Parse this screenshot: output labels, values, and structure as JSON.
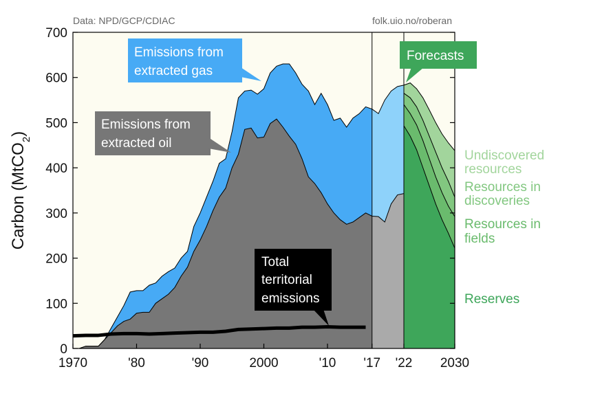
{
  "source_note": "Data: NPD/GCP/CDIAC",
  "credit": "folk.uio.no/roberan",
  "colors": {
    "background": "#fdfcf1",
    "oil": "#777777",
    "oil_recent": "#aaaaaa",
    "gas": "#47aaf5",
    "gas_recent": "#8ed2fa",
    "reserves": "#3ea65a",
    "fields": "#6abb6d",
    "discoveries": "#82c780",
    "undiscovered": "#a2d59c",
    "callout_gas": "#47aaf5",
    "callout_oil": "#777777",
    "callout_total": "#000000",
    "callout_forecast": "#3ea65a"
  },
  "callouts": {
    "gas": [
      "Emissions from",
      "extracted gas"
    ],
    "oil": [
      "Emissions from",
      "extracted oil"
    ],
    "total": [
      "Total",
      "territorial",
      "emissions"
    ],
    "forecast": [
      "Forecasts"
    ]
  },
  "forecast_labels": [
    {
      "lines": [
        "Undiscovered",
        "resources"
      ],
      "color": "#a2d59c"
    },
    {
      "lines": [
        "Resources in",
        "discoveries"
      ],
      "color": "#82c780"
    },
    {
      "lines": [
        "Resources in",
        "fields"
      ],
      "color": "#6abb6d"
    },
    {
      "lines": [
        "Reserves"
      ],
      "color": "#3ea65a"
    }
  ],
  "chart_data": {
    "type": "area",
    "ylabel_main": "Carbon (MtCO",
    "ylabel_sub": "2",
    "ylabel_end": ")",
    "ylim": [
      0,
      700
    ],
    "xlim": [
      1970,
      2030
    ],
    "yticks": [
      0,
      100,
      200,
      300,
      400,
      500,
      600,
      700
    ],
    "xticks": [
      {
        "value": 1970,
        "label": "1970"
      },
      {
        "value": 1980,
        "label": "'80"
      },
      {
        "value": 1990,
        "label": "'90"
      },
      {
        "value": 2000,
        "label": "2000"
      },
      {
        "value": 2010,
        "label": "'10"
      },
      {
        "value": 2017,
        "label": "'17"
      },
      {
        "value": 2022,
        "label": "'22"
      },
      {
        "value": 2030,
        "label": "2030"
      }
    ],
    "historical_end": 2017,
    "forecast_start": 2022,
    "oil": {
      "x": [
        1971,
        1972,
        1973,
        1974,
        1975,
        1976,
        1977,
        1978,
        1979,
        1980,
        1981,
        1982,
        1983,
        1984,
        1985,
        1986,
        1987,
        1988,
        1989,
        1990,
        1991,
        1992,
        1993,
        1994,
        1995,
        1996,
        1997,
        1998,
        1999,
        2000,
        2001,
        2002,
        2003,
        2004,
        2005,
        2006,
        2007,
        2008,
        2009,
        2010,
        2011,
        2012,
        2013,
        2014,
        2015,
        2016,
        2017,
        2018,
        2019,
        2020,
        2021,
        2022
      ],
      "values": [
        0,
        5,
        5,
        5,
        20,
        35,
        50,
        60,
        65,
        78,
        80,
        80,
        100,
        110,
        120,
        135,
        160,
        180,
        215,
        240,
        270,
        305,
        335,
        355,
        400,
        430,
        485,
        488,
        466,
        468,
        498,
        508,
        490,
        470,
        452,
        420,
        380,
        365,
        345,
        320,
        300,
        285,
        275,
        280,
        290,
        300,
        293,
        292,
        280,
        320,
        340,
        343
      ]
    },
    "gas_total": {
      "x": [
        1971,
        1972,
        1973,
        1974,
        1975,
        1976,
        1977,
        1978,
        1979,
        1980,
        1981,
        1982,
        1983,
        1984,
        1985,
        1986,
        1987,
        1988,
        1989,
        1990,
        1991,
        1992,
        1993,
        1994,
        1995,
        1996,
        1997,
        1998,
        1999,
        2000,
        2001,
        2002,
        2003,
        2004,
        2005,
        2006,
        2007,
        2008,
        2009,
        2010,
        2011,
        2012,
        2013,
        2014,
        2015,
        2016,
        2017,
        2018,
        2019,
        2020,
        2021,
        2022
      ],
      "values": [
        0,
        5,
        5,
        5,
        20,
        45,
        70,
        95,
        125,
        128,
        128,
        140,
        145,
        160,
        170,
        178,
        200,
        215,
        270,
        300,
        335,
        370,
        410,
        420,
        480,
        555,
        570,
        572,
        563,
        575,
        610,
        625,
        630,
        630,
        610,
        585,
        570,
        540,
        565,
        540,
        505,
        510,
        490,
        510,
        520,
        535,
        530,
        520,
        550,
        570,
        580,
        583
      ]
    },
    "territorial": {
      "x": [
        1970,
        1972,
        1974,
        1976,
        1978,
        1980,
        1982,
        1984,
        1986,
        1988,
        1990,
        1992,
        1994,
        1996,
        1998,
        2000,
        2002,
        2004,
        2006,
        2008,
        2010,
        2012,
        2014,
        2016
      ],
      "values": [
        28,
        29,
        29,
        32,
        33,
        33,
        32,
        33,
        34,
        35,
        36,
        36,
        38,
        42,
        43,
        44,
        45,
        45,
        47,
        47,
        48,
        47,
        47,
        47
      ]
    },
    "forecast": {
      "x": [
        2022,
        2023,
        2024,
        2025,
        2026,
        2027,
        2028,
        2029,
        2030
      ],
      "reserves": [
        493,
        470,
        440,
        400,
        360,
        320,
        285,
        255,
        222
      ],
      "fields": [
        540,
        520,
        495,
        460,
        420,
        380,
        345,
        315,
        292
      ],
      "discoveries": [
        565,
        555,
        535,
        505,
        470,
        435,
        400,
        370,
        335
      ],
      "undiscovered": [
        583,
        588,
        575,
        555,
        528,
        500,
        475,
        455,
        438
      ]
    }
  }
}
